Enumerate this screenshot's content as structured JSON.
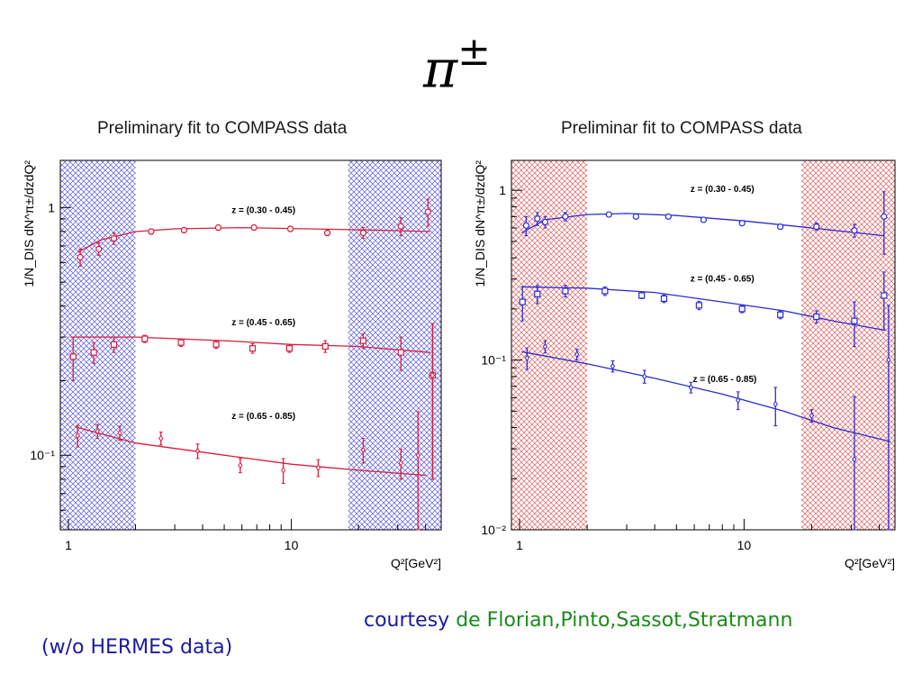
{
  "slide": {
    "title_symbol": "π",
    "title_sup": "±",
    "courtesy_prefix": "courtesy",
    "courtesy_names": "de Florian,Pinto,Sassot,Stratmann",
    "note": "(w/o HERMES data)"
  },
  "colors": {
    "left_series": "#d81e3c",
    "right_series": "#2a2ad6",
    "left_band": "#5a5ae0",
    "right_band": "#e06060"
  },
  "chart_data": [
    {
      "type": "scatter",
      "title": "Preliminary fit to COMPASS data",
      "xlabel": "Q²[GeV²]",
      "ylabel": "1/N_DIS dN^π±/dzdQ²",
      "xscale": "log",
      "yscale": "log",
      "xlim": [
        0.92,
        47
      ],
      "ylim": [
        0.05,
        1.55
      ],
      "xticks": [
        {
          "v": 1,
          "label": "1"
        },
        {
          "v": 10,
          "label": "10"
        }
      ],
      "yticks": [
        {
          "v": 1,
          "label": "1"
        },
        {
          "v": 0.1,
          "label": "10⁻¹"
        }
      ],
      "excluded_bands": [
        [
          0.92,
          2.0
        ],
        [
          18.0,
          47
        ]
      ],
      "series": [
        {
          "name": "z = (0.30 - 0.45)",
          "label_at": [
            7.5,
            0.95
          ],
          "marker": "circle",
          "points": [
            [
              1.13,
              0.63,
              0.05
            ],
            [
              1.37,
              0.68,
              0.04
            ],
            [
              1.6,
              0.75,
              0.04
            ],
            [
              2.35,
              0.8,
              0.02
            ],
            [
              3.3,
              0.81,
              0.02
            ],
            [
              4.7,
              0.83,
              0.02
            ],
            [
              6.8,
              0.83,
              0.02
            ],
            [
              9.9,
              0.82,
              0.02
            ],
            [
              14.5,
              0.79,
              0.02
            ],
            [
              21,
              0.79,
              0.04
            ],
            [
              31,
              0.84,
              0.07
            ],
            [
              41,
              0.96,
              0.12
            ]
          ],
          "curve": [
            [
              1.1,
              0.66
            ],
            [
              1.4,
              0.74
            ],
            [
              2,
              0.8
            ],
            [
              3,
              0.82
            ],
            [
              6,
              0.83
            ],
            [
              12,
              0.82
            ],
            [
              25,
              0.81
            ],
            [
              42,
              0.8
            ]
          ]
        },
        {
          "name": "z = (0.45 - 0.65)",
          "label_at": [
            7.5,
            0.335
          ],
          "marker": "square",
          "points": [
            [
              1.05,
              0.25,
              0.05
            ],
            [
              1.3,
              0.26,
              0.025
            ],
            [
              1.6,
              0.28,
              0.02
            ],
            [
              2.2,
              0.295,
              0.01
            ],
            [
              3.2,
              0.285,
              0.01
            ],
            [
              4.6,
              0.28,
              0.01
            ],
            [
              6.7,
              0.27,
              0.012
            ],
            [
              9.8,
              0.27,
              0.01
            ],
            [
              14.2,
              0.275,
              0.015
            ],
            [
              21,
              0.29,
              0.02
            ],
            [
              31,
              0.26,
              0.04
            ],
            [
              43,
              0.21,
              0.13
            ]
          ],
          "curve": [
            [
              1.02,
              0.3
            ],
            [
              2,
              0.3
            ],
            [
              5,
              0.29
            ],
            [
              10,
              0.28
            ],
            [
              20,
              0.275
            ],
            [
              42,
              0.26
            ]
          ]
        },
        {
          "name": "z = (0.65 - 0.85)",
          "label_at": [
            7.5,
            0.14
          ],
          "marker": "diamond",
          "points": [
            [
              1.1,
              0.12,
              0.012
            ],
            [
              1.35,
              0.125,
              0.008
            ],
            [
              1.7,
              0.123,
              0.008
            ],
            [
              2.6,
              0.117,
              0.007
            ],
            [
              3.8,
              0.104,
              0.007
            ],
            [
              5.9,
              0.091,
              0.006
            ],
            [
              9.2,
              0.087,
              0.01
            ],
            [
              13.2,
              0.089,
              0.007
            ],
            [
              21,
              0.105,
              0.012
            ],
            [
              31,
              0.093,
              0.013
            ],
            [
              37,
              0.1,
              0.05
            ],
            [
              43,
              0.21,
              0.13
            ]
          ],
          "curve": [
            [
              1.08,
              0.13
            ],
            [
              2,
              0.112
            ],
            [
              5,
              0.1
            ],
            [
              10,
              0.092
            ],
            [
              20,
              0.087
            ],
            [
              40,
              0.083
            ]
          ]
        }
      ]
    },
    {
      "type": "scatter",
      "title": "Preliminar fit to COMPASS data",
      "xlabel": "Q²[GeV²]",
      "ylabel": "1/N_DIS dN^π±/dzdQ²",
      "xscale": "log",
      "yscale": "log",
      "xlim": [
        0.92,
        47
      ],
      "ylim": [
        0.01,
        1.5
      ],
      "xticks": [
        {
          "v": 1,
          "label": "1"
        },
        {
          "v": 10,
          "label": "10"
        }
      ],
      "yticks": [
        {
          "v": 1,
          "label": "1"
        },
        {
          "v": 0.1,
          "label": "10⁻¹"
        },
        {
          "v": 0.01,
          "label": "10⁻²"
        }
      ],
      "excluded_bands": [
        [
          0.92,
          2.0
        ],
        [
          18.0,
          47
        ]
      ],
      "series": [
        {
          "name": "z = (0.30 - 0.45)",
          "label_at": [
            8.0,
            0.98
          ],
          "marker": "circle",
          "points": [
            [
              1.07,
              0.62,
              0.08
            ],
            [
              1.2,
              0.68,
              0.06
            ],
            [
              1.3,
              0.65,
              0.05
            ],
            [
              1.6,
              0.7,
              0.04
            ],
            [
              2.5,
              0.72,
              0.02
            ],
            [
              3.3,
              0.7,
              0.02
            ],
            [
              4.6,
              0.7,
              0.02
            ],
            [
              6.6,
              0.67,
              0.02
            ],
            [
              9.8,
              0.64,
              0.02
            ],
            [
              14.5,
              0.61,
              0.02
            ],
            [
              21,
              0.61,
              0.03
            ],
            [
              31,
              0.58,
              0.05
            ],
            [
              42,
              0.7,
              0.28
            ]
          ],
          "curve": [
            [
              1.02,
              0.56
            ],
            [
              1.3,
              0.67
            ],
            [
              2,
              0.72
            ],
            [
              3,
              0.73
            ],
            [
              5,
              0.71
            ],
            [
              10,
              0.66
            ],
            [
              20,
              0.6
            ],
            [
              42,
              0.54
            ]
          ]
        },
        {
          "name": "z = (0.45 - 0.65)",
          "label_at": [
            8.0,
            0.29
          ],
          "marker": "square",
          "points": [
            [
              1.03,
              0.22,
              0.05
            ],
            [
              1.2,
              0.245,
              0.03
            ],
            [
              1.6,
              0.255,
              0.02
            ],
            [
              2.4,
              0.255,
              0.015
            ],
            [
              3.5,
              0.24,
              0.01
            ],
            [
              4.4,
              0.23,
              0.012
            ],
            [
              6.3,
              0.21,
              0.012
            ],
            [
              9.8,
              0.2,
              0.01
            ],
            [
              14.5,
              0.185,
              0.01
            ],
            [
              21,
              0.18,
              0.015
            ],
            [
              31,
              0.17,
              0.05
            ],
            [
              42,
              0.24,
              0.09
            ]
          ],
          "curve": [
            [
              1.02,
              0.27
            ],
            [
              2,
              0.265
            ],
            [
              4,
              0.25
            ],
            [
              8,
              0.22
            ],
            [
              15,
              0.195
            ],
            [
              25,
              0.17
            ],
            [
              42,
              0.15
            ]
          ]
        },
        {
          "name": "z = (0.65 - 0.85)",
          "label_at": [
            8.2,
            0.074
          ],
          "marker": "diamond",
          "points": [
            [
              1.08,
              0.103,
              0.015
            ],
            [
              1.3,
              0.12,
              0.01
            ],
            [
              1.8,
              0.108,
              0.008
            ],
            [
              2.6,
              0.092,
              0.007
            ],
            [
              3.6,
              0.08,
              0.007
            ],
            [
              5.8,
              0.069,
              0.005
            ],
            [
              9.4,
              0.058,
              0.007
            ],
            [
              13.8,
              0.055,
              0.014
            ],
            [
              20,
              0.047,
              0.004
            ],
            [
              31,
              0.026,
              0.035
            ],
            [
              44,
              0.1,
              0.11
            ]
          ],
          "curve": [
            [
              1.02,
              0.112
            ],
            [
              2,
              0.095
            ],
            [
              4,
              0.078
            ],
            [
              8,
              0.063
            ],
            [
              15,
              0.05
            ],
            [
              25,
              0.04
            ],
            [
              45,
              0.033
            ]
          ]
        }
      ]
    }
  ]
}
